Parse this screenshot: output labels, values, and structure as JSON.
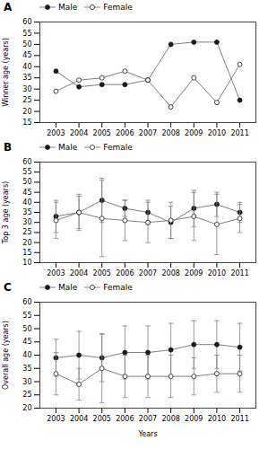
{
  "chart_data": [
    {
      "type": "line",
      "title": "A",
      "x": [
        2003,
        2004,
        2005,
        2006,
        2007,
        2008,
        2009,
        2010,
        2011
      ],
      "xlim": [
        2002.3,
        2011.7
      ],
      "xticks": [
        2003,
        2004,
        2005,
        2006,
        2007,
        2008,
        2009,
        2010,
        2011
      ],
      "ylabel": "Winner age (years)",
      "ylim": [
        15,
        60
      ],
      "yticks": [
        15,
        20,
        25,
        30,
        35,
        40,
        45,
        50,
        55,
        60
      ],
      "color": "#808080",
      "legend": "upper left",
      "series": [
        {
          "name": "Male",
          "color": "#1a1a1a",
          "marker": "filled",
          "values": [
            38,
            31,
            32,
            32,
            34,
            50,
            51,
            51,
            25
          ]
        },
        {
          "name": "Female",
          "color": "#1a1a1a",
          "marker": "open",
          "values": [
            29,
            34,
            35,
            38,
            34,
            22,
            35,
            24,
            41
          ]
        }
      ]
    },
    {
      "type": "line",
      "title": "B",
      "x": [
        2003,
        2004,
        2005,
        2006,
        2007,
        2008,
        2009,
        2010,
        2011
      ],
      "xlim": [
        2002.3,
        2011.7
      ],
      "xticks": [
        2003,
        2004,
        2005,
        2006,
        2007,
        2008,
        2009,
        2010,
        2011
      ],
      "ylabel": "Top 3 age (years)",
      "ylim": [
        10,
        60
      ],
      "yticks": [
        10,
        15,
        20,
        25,
        30,
        35,
        40,
        45,
        50,
        55,
        60
      ],
      "color": "#808080",
      "legend": "upper left",
      "series": [
        {
          "name": "Male",
          "color": "#1a1a1a",
          "marker": "filled",
          "values": [
            33,
            35,
            41,
            37,
            35,
            30,
            37,
            39,
            35
          ],
          "errors": [
            8,
            9,
            11,
            4,
            6,
            8,
            9,
            6,
            5
          ]
        },
        {
          "name": "Female",
          "color": "#1a1a1a",
          "marker": "open",
          "values": [
            31,
            35,
            32,
            31,
            30,
            31,
            33,
            29,
            32
          ],
          "errors": [
            9,
            8,
            19,
            10,
            10,
            9,
            12,
            15,
            7
          ]
        }
      ]
    },
    {
      "type": "line",
      "title": "C",
      "x": [
        2003,
        2004,
        2005,
        2006,
        2007,
        2008,
        2009,
        2010,
        2011
      ],
      "xlim": [
        2002.3,
        2011.7
      ],
      "xticks": [
        2003,
        2004,
        2005,
        2006,
        2007,
        2008,
        2009,
        2010,
        2011
      ],
      "xlabel": "Years",
      "ylabel": "Overall age (years)",
      "ylim": [
        20,
        60
      ],
      "yticks": [
        20,
        25,
        30,
        35,
        40,
        45,
        50,
        55,
        60
      ],
      "color": "#808080",
      "legend": "upper left",
      "series": [
        {
          "name": "Male",
          "color": "#1a1a1a",
          "marker": "filled",
          "values": [
            39,
            40,
            39,
            41,
            41,
            42,
            44,
            44,
            43
          ],
          "errors": [
            7,
            9,
            9,
            10,
            10,
            10,
            9,
            9,
            9
          ]
        },
        {
          "name": "Female",
          "color": "#1a1a1a",
          "marker": "open",
          "values": [
            33,
            29,
            35,
            32,
            32,
            32,
            32,
            33,
            33
          ],
          "errors": [
            8,
            6,
            13,
            8,
            8,
            8,
            7,
            7,
            7
          ]
        }
      ]
    }
  ]
}
